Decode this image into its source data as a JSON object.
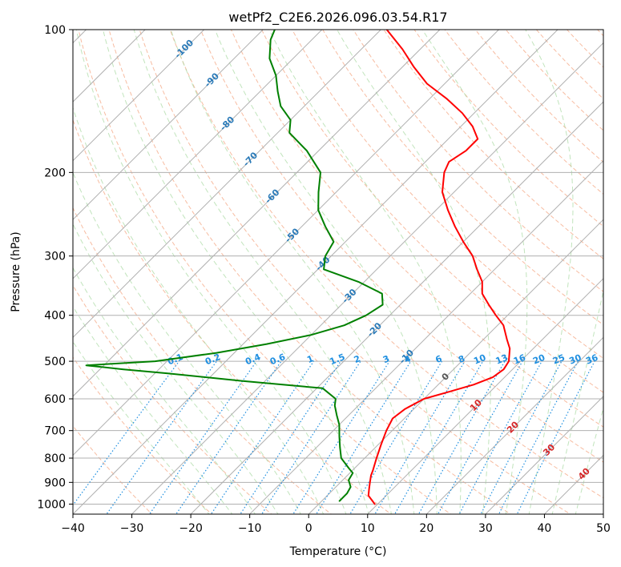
{
  "chart_data": {
    "type": "line",
    "title": "wetPf2_C2E6.2026.096.03.54.R17",
    "xlabel": "Temperature (°C)",
    "ylabel": "Pressure (hPa)",
    "xlim": [
      -40,
      50
    ],
    "ylim": [
      1050,
      100
    ],
    "x_ticks": [
      -40,
      -30,
      -20,
      -10,
      0,
      10,
      20,
      30,
      40,
      50
    ],
    "y_ticks": [
      100,
      200,
      300,
      400,
      500,
      600,
      700,
      800,
      900,
      1000
    ],
    "x_tick_labels": [
      "−40",
      "−30",
      "−20",
      "−10",
      "0",
      "10",
      "20",
      "30",
      "40",
      "50"
    ],
    "y_tick_labels": [
      "100",
      "200",
      "300",
      "400",
      "500",
      "600",
      "700",
      "800",
      "900",
      "1000"
    ],
    "isotherm_labels": [
      {
        "text": "-100",
        "t": -100,
        "p": 110
      },
      {
        "text": "-90",
        "t": -90,
        "p": 128
      },
      {
        "text": "-80",
        "t": -80,
        "p": 158
      },
      {
        "text": "-70",
        "t": -70,
        "p": 188
      },
      {
        "text": "-60",
        "t": -60,
        "p": 225
      },
      {
        "text": "-50",
        "t": -50,
        "p": 272
      },
      {
        "text": "-40",
        "t": -40,
        "p": 312
      },
      {
        "text": "-30",
        "t": -30,
        "p": 365
      },
      {
        "text": "-20",
        "t": -20,
        "p": 430
      },
      {
        "text": "-10",
        "t": -10,
        "p": 490
      },
      {
        "text": "0",
        "t": 0,
        "p": 540
      }
    ],
    "dry_adiabat_labels": [
      {
        "text": "10",
        "t": 10,
        "p": 620,
        "color": "#d62728"
      },
      {
        "text": "20",
        "t": 20,
        "p": 690,
        "color": "#d62728"
      },
      {
        "text": "30",
        "t": 30,
        "p": 770,
        "color": "#d62728"
      },
      {
        "text": "40",
        "t": 40,
        "p": 865,
        "color": "#d62728"
      }
    ],
    "mixing_ratio_labels": [
      {
        "text": "0.1",
        "g": 0.1
      },
      {
        "text": "0.2",
        "g": 0.2
      },
      {
        "text": "0.4",
        "g": 0.4
      },
      {
        "text": "0.6",
        "g": 0.6
      },
      {
        "text": "1",
        "g": 1
      },
      {
        "text": "1.5",
        "g": 1.5
      },
      {
        "text": "2",
        "g": 2
      },
      {
        "text": "3",
        "g": 3
      },
      {
        "text": "4",
        "g": 4
      },
      {
        "text": "6",
        "g": 6
      },
      {
        "text": "8",
        "g": 8
      },
      {
        "text": "10",
        "g": 10
      },
      {
        "text": "13",
        "g": 13
      },
      {
        "text": "16",
        "g": 16
      },
      {
        "text": "20",
        "g": 20
      },
      {
        "text": "25",
        "g": 25
      },
      {
        "text": "30",
        "g": 30
      },
      {
        "text": "36",
        "g": 36
      }
    ],
    "series": [
      {
        "name": "Temperature",
        "color": "#ff0000",
        "points": [
          [
            1000,
            9.5
          ],
          [
            960,
            7
          ],
          [
            930,
            6
          ],
          [
            900,
            5
          ],
          [
            870,
            4
          ],
          [
            850,
            3.5
          ],
          [
            800,
            2
          ],
          [
            750,
            0.5
          ],
          [
            700,
            -1
          ],
          [
            660,
            -2
          ],
          [
            630,
            -1.5
          ],
          [
            600,
            0
          ],
          [
            580,
            3
          ],
          [
            560,
            6
          ],
          [
            540,
            8
          ],
          [
            520,
            8.5
          ],
          [
            500,
            8
          ],
          [
            470,
            6
          ],
          [
            450,
            4
          ],
          [
            420,
            1
          ],
          [
            400,
            -2
          ],
          [
            380,
            -5
          ],
          [
            360,
            -8
          ],
          [
            340,
            -10
          ],
          [
            320,
            -13
          ],
          [
            300,
            -16
          ],
          [
            280,
            -20
          ],
          [
            260,
            -24
          ],
          [
            240,
            -28
          ],
          [
            220,
            -32
          ],
          [
            200,
            -35
          ],
          [
            190,
            -36
          ],
          [
            180,
            -35
          ],
          [
            170,
            -35
          ],
          [
            160,
            -38
          ],
          [
            150,
            -42
          ],
          [
            140,
            -47
          ],
          [
            130,
            -53
          ],
          [
            120,
            -58
          ],
          [
            110,
            -63
          ],
          [
            100,
            -69
          ]
        ]
      },
      {
        "name": "Dewpoint",
        "color": "#008000",
        "points": [
          [
            985,
            3
          ],
          [
            950,
            3
          ],
          [
            920,
            2.5
          ],
          [
            890,
            1
          ],
          [
            860,
            0.5
          ],
          [
            840,
            -1
          ],
          [
            800,
            -4
          ],
          [
            760,
            -6
          ],
          [
            720,
            -8
          ],
          [
            680,
            -10
          ],
          [
            650,
            -12
          ],
          [
            620,
            -14
          ],
          [
            600,
            -15
          ],
          [
            570,
            -19
          ],
          [
            550,
            -34
          ],
          [
            530,
            -48
          ],
          [
            520,
            -56
          ],
          [
            510,
            -63
          ],
          [
            500,
            -52
          ],
          [
            480,
            -43
          ],
          [
            460,
            -36
          ],
          [
            440,
            -30
          ],
          [
            420,
            -26
          ],
          [
            400,
            -24
          ],
          [
            380,
            -23
          ],
          [
            360,
            -25
          ],
          [
            340,
            -31
          ],
          [
            320,
            -39
          ],
          [
            300,
            -41
          ],
          [
            280,
            -42
          ],
          [
            260,
            -46
          ],
          [
            240,
            -50
          ],
          [
            220,
            -53
          ],
          [
            200,
            -56
          ],
          [
            180,
            -62
          ],
          [
            165,
            -68
          ],
          [
            155,
            -70
          ],
          [
            145,
            -74
          ],
          [
            135,
            -77
          ],
          [
            125,
            -80
          ],
          [
            115,
            -84
          ],
          [
            105,
            -87
          ],
          [
            100,
            -88
          ]
        ]
      }
    ]
  }
}
